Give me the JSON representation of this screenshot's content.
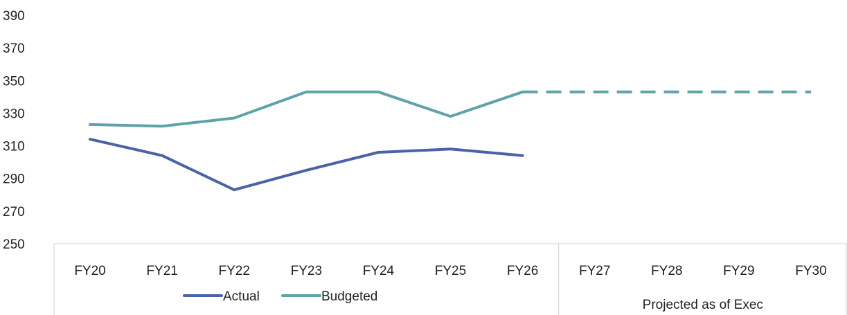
{
  "chart_data": {
    "type": "line",
    "title": "",
    "xlabel": "",
    "ylabel": "",
    "ylim": [
      250,
      390
    ],
    "yticks": [
      250,
      270,
      290,
      310,
      330,
      350,
      370,
      390
    ],
    "categories": [
      "FY20",
      "FY21",
      "FY22",
      "FY23",
      "FY24",
      "FY25",
      "FY26",
      "FY27",
      "FY28",
      "FY29",
      "FY30"
    ],
    "grid": false,
    "legend": {
      "placement": "bottom",
      "entries": [
        "Actual",
        "Budgeted"
      ]
    },
    "group_label": "Projected as of Exec",
    "series": [
      {
        "name": "Actual",
        "color": "#4a62a8",
        "style": "solid",
        "values": [
          314,
          304,
          283,
          295,
          306,
          308,
          304,
          null,
          null,
          null,
          null
        ]
      },
      {
        "name": "Budgeted",
        "color": "#5ea3a8",
        "style": "solid-then-dashed",
        "dashed_from": "FY26",
        "values": [
          323,
          322,
          327,
          343,
          343,
          328,
          343,
          343,
          343,
          343,
          343
        ]
      }
    ]
  }
}
